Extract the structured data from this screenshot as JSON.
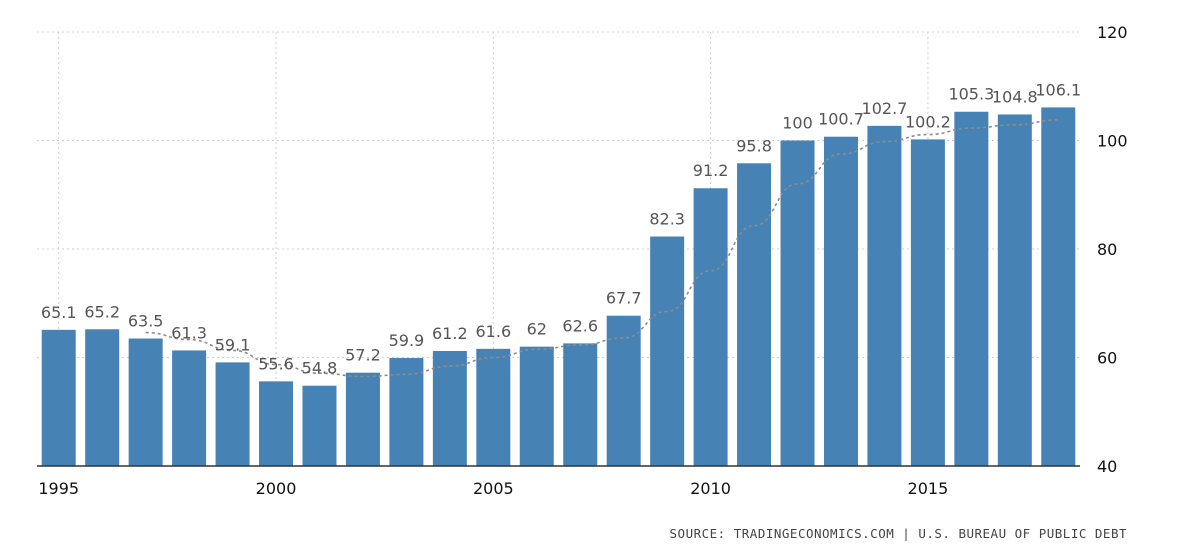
{
  "chart_data": {
    "type": "bar",
    "categories": [
      1995,
      1996,
      1997,
      1998,
      1999,
      2000,
      2001,
      2002,
      2003,
      2004,
      2005,
      2006,
      2007,
      2008,
      2009,
      2010,
      2011,
      2012,
      2013,
      2014,
      2015,
      2016,
      2017,
      2018
    ],
    "series": [
      {
        "values": [
          65.1,
          65.2,
          63.5,
          61.3,
          59.1,
          55.6,
          54.8,
          57.2,
          59.9,
          61.2,
          61.6,
          62,
          62.6,
          67.7,
          82.3,
          91.2,
          95.8,
          100,
          100.7,
          102.7,
          100.2,
          105.3,
          104.8,
          106.1
        ],
        "data_labels": [
          "65.1",
          "65.2",
          "63.5",
          "61.3",
          "59.1",
          "55.6",
          "54.8",
          "57.2",
          "59.9",
          "61.2",
          "61.6",
          "62",
          "62.6",
          "67.7",
          "82.3",
          "91.2",
          "95.8",
          "100",
          "100.7",
          "102.7",
          "100.2",
          "105.3",
          "104.8",
          "106.1"
        ],
        "color": "#4682b4"
      }
    ],
    "trend": {
      "x": [
        1997,
        1998,
        1999,
        2000,
        2001,
        2002,
        2003,
        2004,
        2005,
        2006,
        2007,
        2008,
        2009,
        2010,
        2011,
        2012,
        2013,
        2014,
        2015,
        2016,
        2017,
        2018
      ],
      "y": [
        64.6,
        63.3,
        61.3,
        58.7,
        57.1,
        56.5,
        56.9,
        58.4,
        60.0,
        61.5,
        62.3,
        63.6,
        68.5,
        76.0,
        84.3,
        92.0,
        97.5,
        99.8,
        101.1,
        102.3,
        102.9,
        103.8
      ],
      "color": "#8c8c8c",
      "style": "dashed"
    },
    "x_ticks": [
      "1995",
      "2000",
      "2005",
      "2010",
      "2015"
    ],
    "x_tick_values": [
      1995,
      2000,
      2005,
      2010,
      2015
    ],
    "y_ticks": [
      "120",
      "100",
      "80",
      "60",
      "40"
    ],
    "y_tick_values": [
      120,
      100,
      80,
      60,
      40
    ],
    "ylim": [
      40,
      120
    ],
    "xlim": [
      1994.5,
      2018.5
    ],
    "y_axis_side": "right",
    "grid": true,
    "title": "",
    "xlabel": "",
    "ylabel": ""
  },
  "footer": {
    "source": "SOURCE: TRADINGECONOMICS.COM | U.S. BUREAU OF PUBLIC DEBT"
  }
}
